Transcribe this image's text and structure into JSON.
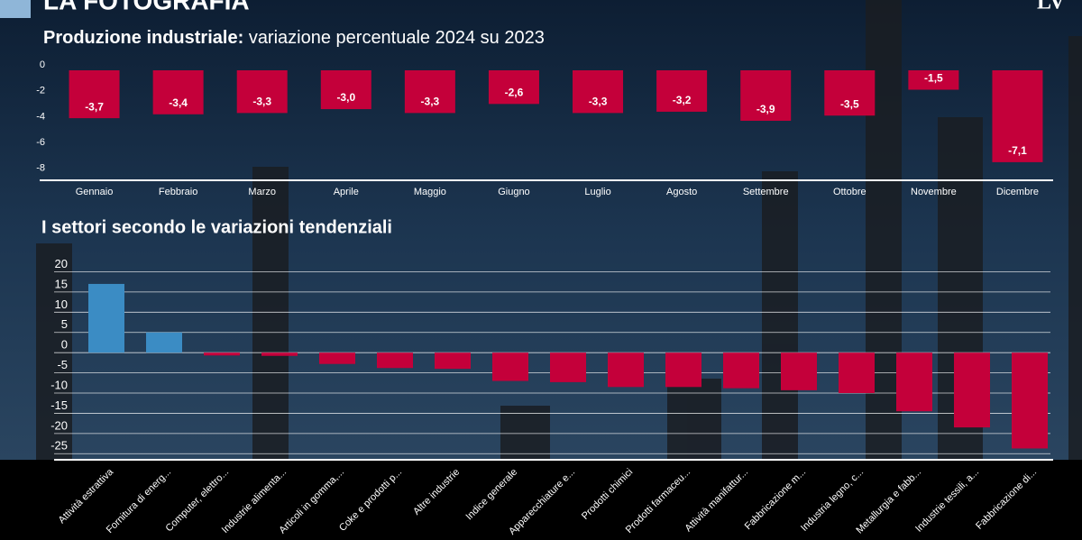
{
  "header": {
    "title": "LA FOTOGRAFIA",
    "logo": "LV"
  },
  "chart_data": [
    {
      "type": "bar",
      "title": "Produzione industriale:",
      "subtitle": "variazione percentuale 2024 su 2023",
      "categories": [
        "Gennaio",
        "Febbraio",
        "Marzo",
        "Aprile",
        "Maggio",
        "Giugno",
        "Luglio",
        "Agosto",
        "Settembre",
        "Ottobre",
        "Novembre",
        "Dicembre"
      ],
      "values": [
        -3.7,
        -3.4,
        -3.3,
        -3.0,
        -3.3,
        -2.6,
        -3.3,
        -3.2,
        -3.9,
        -3.5,
        -1.5,
        -7.1
      ],
      "value_labels": [
        "-3,7",
        "-3,4",
        "-3,3",
        "-3,0",
        "-3,3",
        "-2,6",
        "-3,3",
        "-3,2",
        "-3,9",
        "-3,5",
        "-1,5",
        "-7,1"
      ],
      "color": "#c4003a",
      "ylim": [
        -8.5,
        0
      ],
      "yticks": [
        0,
        -2,
        -4,
        -6,
        -8
      ],
      "grid": false
    },
    {
      "type": "bar",
      "title": "I settori secondo le variazioni tendenziali",
      "categories": [
        "Attività estrattiva",
        "Fornitura di energ...",
        "Computer, elettro...",
        "Industrie alimenta...",
        "Articoli in gomma,...",
        "Coke e prodotti p...",
        "Altre industrie",
        "Indice generale",
        "Apparecchiature e...",
        "Prodotti chimici",
        "Prodotti farmaceu...",
        "Attività manifattur...",
        "Fabbricazione m...",
        "Industria legno, c...",
        "Metallurgia e fabb...",
        "Industrie tessili, a...",
        "Fabbricazione di..."
      ],
      "values": [
        17,
        5,
        -0.7,
        -0.8,
        -2.8,
        -3.8,
        -4,
        -7,
        -7.3,
        -8.5,
        -8.5,
        -8.8,
        -9.3,
        -10,
        -14.5,
        -18.5,
        -23.7
      ],
      "positive_color": "#3b8cc4",
      "color": "#c4003a",
      "ylim": [
        -26.5,
        21
      ],
      "yticks": [
        20,
        15,
        10,
        5,
        0,
        -5,
        -10,
        -15,
        -20,
        -25
      ],
      "grid": true
    }
  ]
}
